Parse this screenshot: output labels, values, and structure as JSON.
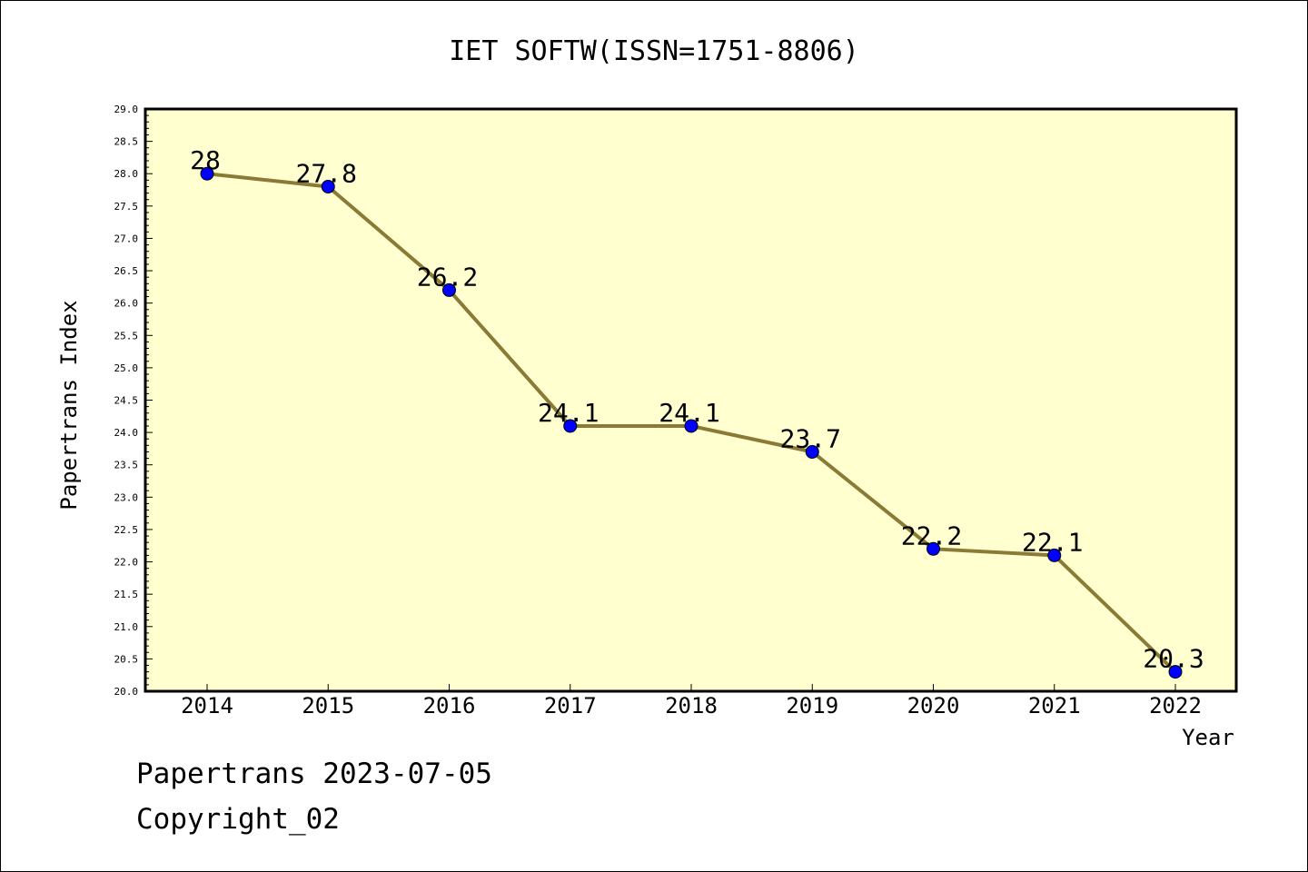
{
  "chart_data": {
    "type": "line",
    "title": "IET SOFTW(ISSN=1751-8806)",
    "xlabel": "Year",
    "ylabel": "Papertrans Index",
    "x": [
      "2014",
      "2015",
      "2016",
      "2017",
      "2018",
      "2019",
      "2020",
      "2021",
      "2022"
    ],
    "series": [
      {
        "values": [
          28,
          27.8,
          26.2,
          24.1,
          24.1,
          23.7,
          22.2,
          22.1,
          20.3
        ]
      }
    ],
    "data_labels": [
      "28",
      "27.8",
      "26.2",
      "24.1",
      "24.1",
      "23.7",
      "22.2",
      "22.1",
      "20.3"
    ],
    "ylim": [
      20.0,
      29.0
    ],
    "yticks": [
      "20.0",
      "20.5",
      "21.0",
      "21.5",
      "22.0",
      "22.5",
      "23.0",
      "23.5",
      "24.0",
      "24.5",
      "25.0",
      "25.5",
      "26.0",
      "26.5",
      "27.0",
      "27.5",
      "28.0",
      "28.5",
      "29.0"
    ],
    "grid": false,
    "colors": {
      "plot_background": "#ffffd0",
      "line": "#8b7a35",
      "marker": "#0000ff"
    }
  },
  "footer": {
    "source": "Papertrans 2023-07-05",
    "copyright": "Copyright_02"
  }
}
